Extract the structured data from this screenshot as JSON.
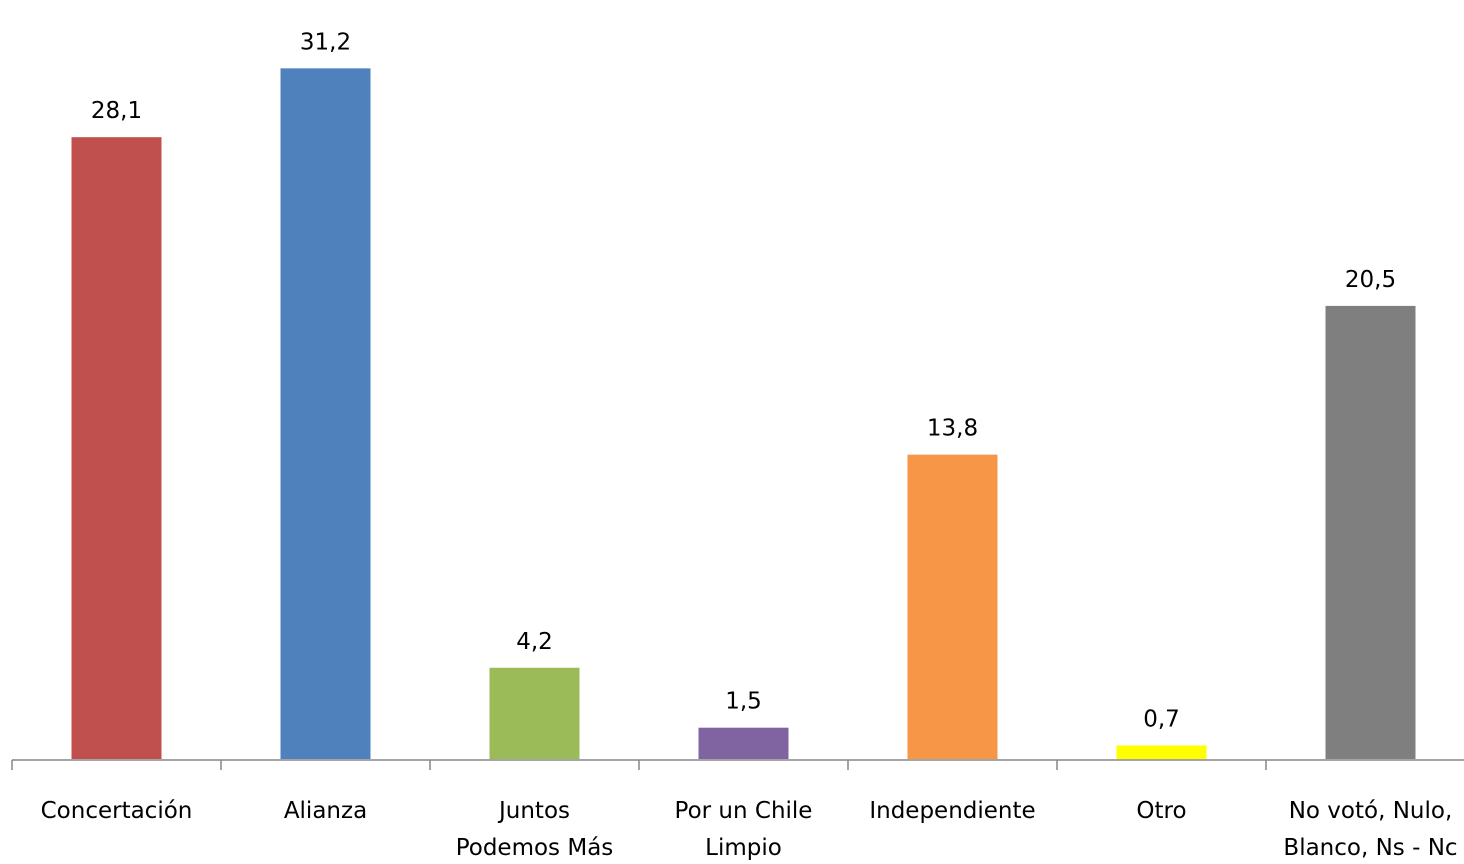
{
  "chart_data": {
    "type": "bar",
    "title": "",
    "xlabel": "",
    "ylabel": "",
    "ylim": [
      0,
      32
    ],
    "grid": false,
    "legend": "none",
    "categories": [
      [
        "Concertación"
      ],
      [
        "Alianza"
      ],
      [
        "Juntos",
        "Podemos Más"
      ],
      [
        "Por un Chile",
        "Limpio"
      ],
      [
        "Independiente"
      ],
      [
        "Otro"
      ],
      [
        "No votó, Nulo,",
        "Blanco, Ns - Nc"
      ]
    ],
    "values": [
      28.1,
      31.2,
      4.2,
      1.5,
      13.8,
      0.7,
      20.5
    ],
    "value_labels": [
      "28,1",
      "31,2",
      "4,2",
      "1,5",
      "13,8",
      "0,7",
      "20,5"
    ],
    "colors": [
      "#C0504D",
      "#4F81BD",
      "#9BBB59",
      "#8064A2",
      "#F79646",
      "#FFFF00",
      "#7F7F7F"
    ]
  }
}
